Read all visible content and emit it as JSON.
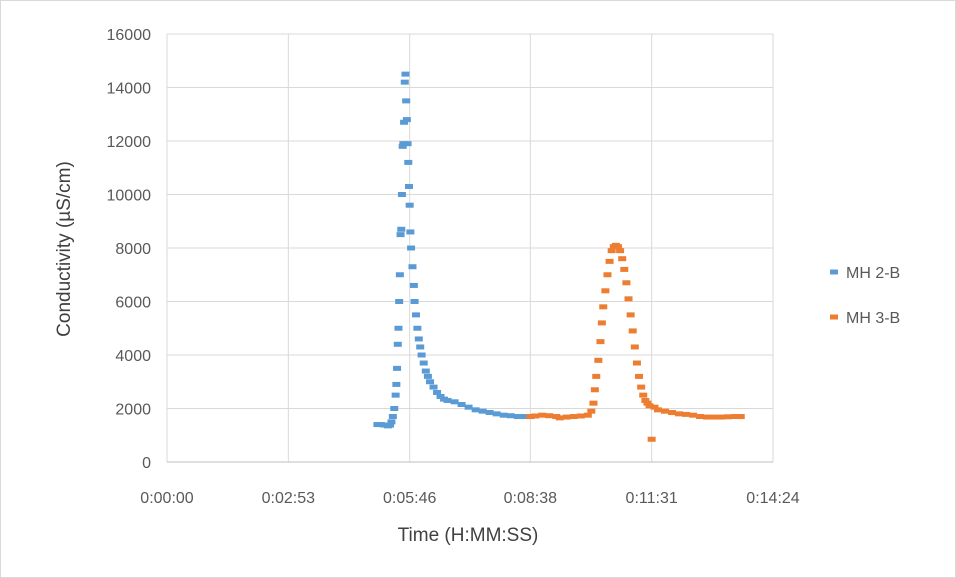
{
  "chart_data": {
    "type": "scatter",
    "title": "",
    "xlabel": "Time (H:MM:SS)",
    "ylabel": "Conductivity (µS/cm)",
    "x_unit": "H:MM:SS",
    "xlim": [
      "0:00:00",
      "0:14:24"
    ],
    "ylim": [
      0,
      16000
    ],
    "x_ticks": [
      "0:00:00",
      "0:02:53",
      "0:05:46",
      "0:08:38",
      "0:11:31",
      "0:14:24"
    ],
    "y_ticks": [
      "0",
      "2000",
      "4000",
      "6000",
      "8000",
      "10000",
      "12000",
      "14000",
      "16000"
    ],
    "grid": true,
    "legend_position": "right",
    "series": [
      {
        "name": "MH 2-B",
        "color": "#5B9BD5",
        "points": [
          [
            "0:05:00",
            1400
          ],
          [
            "0:05:05",
            1400
          ],
          [
            "0:05:10",
            1380
          ],
          [
            "0:05:15",
            1350
          ],
          [
            "0:05:18",
            1380
          ],
          [
            "0:05:20",
            1500
          ],
          [
            "0:05:22",
            1700
          ],
          [
            "0:05:24",
            2000
          ],
          [
            "0:05:26",
            2500
          ],
          [
            "0:05:27",
            2900
          ],
          [
            "0:05:28",
            3500
          ],
          [
            "0:05:29",
            4400
          ],
          [
            "0:05:30",
            5000
          ],
          [
            "0:05:31",
            6000
          ],
          [
            "0:05:32",
            7000
          ],
          [
            "0:05:33",
            8500
          ],
          [
            "0:05:34",
            8700
          ],
          [
            "0:05:35",
            10000
          ],
          [
            "0:05:36",
            11800
          ],
          [
            "0:05:37",
            11900
          ],
          [
            "0:05:38",
            12700
          ],
          [
            "0:05:39",
            14200
          ],
          [
            "0:05:40",
            14500
          ],
          [
            "0:05:41",
            13500
          ],
          [
            "0:05:42",
            12800
          ],
          [
            "0:05:43",
            11900
          ],
          [
            "0:05:44",
            11200
          ],
          [
            "0:05:45",
            10300
          ],
          [
            "0:05:46",
            9600
          ],
          [
            "0:05:47",
            8600
          ],
          [
            "0:05:48",
            8000
          ],
          [
            "0:05:50",
            7300
          ],
          [
            "0:05:52",
            6600
          ],
          [
            "0:05:53",
            6000
          ],
          [
            "0:05:55",
            5500
          ],
          [
            "0:05:57",
            5000
          ],
          [
            "0:05:59",
            4600
          ],
          [
            "0:06:01",
            4300
          ],
          [
            "0:06:03",
            4000
          ],
          [
            "0:06:06",
            3700
          ],
          [
            "0:06:09",
            3400
          ],
          [
            "0:06:12",
            3200
          ],
          [
            "0:06:15",
            3000
          ],
          [
            "0:06:20",
            2800
          ],
          [
            "0:06:25",
            2600
          ],
          [
            "0:06:30",
            2450
          ],
          [
            "0:06:35",
            2350
          ],
          [
            "0:06:40",
            2300
          ],
          [
            "0:06:50",
            2250
          ],
          [
            "0:07:00",
            2150
          ],
          [
            "0:07:10",
            2050
          ],
          [
            "0:07:20",
            1950
          ],
          [
            "0:07:30",
            1900
          ],
          [
            "0:07:40",
            1850
          ],
          [
            "0:07:50",
            1800
          ],
          [
            "0:08:00",
            1750
          ],
          [
            "0:08:10",
            1730
          ],
          [
            "0:08:20",
            1700
          ],
          [
            "0:08:30",
            1700
          ],
          [
            "0:08:38",
            1700
          ]
        ]
      },
      {
        "name": "MH 3-B",
        "color": "#ED7D31",
        "points": [
          [
            "0:08:38",
            1700
          ],
          [
            "0:08:45",
            1720
          ],
          [
            "0:08:55",
            1750
          ],
          [
            "0:09:05",
            1730
          ],
          [
            "0:09:15",
            1700
          ],
          [
            "0:09:20",
            1650
          ],
          [
            "0:09:30",
            1680
          ],
          [
            "0:09:40",
            1700
          ],
          [
            "0:09:50",
            1720
          ],
          [
            "0:10:00",
            1750
          ],
          [
            "0:10:05",
            1900
          ],
          [
            "0:10:08",
            2200
          ],
          [
            "0:10:10",
            2700
          ],
          [
            "0:10:12",
            3200
          ],
          [
            "0:10:15",
            3800
          ],
          [
            "0:10:18",
            4500
          ],
          [
            "0:10:20",
            5200
          ],
          [
            "0:10:22",
            5800
          ],
          [
            "0:10:25",
            6400
          ],
          [
            "0:10:28",
            7000
          ],
          [
            "0:10:31",
            7500
          ],
          [
            "0:10:34",
            7900
          ],
          [
            "0:10:37",
            8050
          ],
          [
            "0:10:40",
            8100
          ],
          [
            "0:10:43",
            8050
          ],
          [
            "0:10:46",
            7900
          ],
          [
            "0:10:49",
            7600
          ],
          [
            "0:10:52",
            7200
          ],
          [
            "0:10:55",
            6700
          ],
          [
            "0:10:58",
            6100
          ],
          [
            "0:11:01",
            5500
          ],
          [
            "0:11:04",
            4900
          ],
          [
            "0:11:07",
            4300
          ],
          [
            "0:11:10",
            3700
          ],
          [
            "0:11:13",
            3200
          ],
          [
            "0:11:16",
            2800
          ],
          [
            "0:11:19",
            2500
          ],
          [
            "0:11:22",
            2300
          ],
          [
            "0:11:25",
            2200
          ],
          [
            "0:11:28",
            2100
          ],
          [
            "0:11:31",
            850
          ],
          [
            "0:11:35",
            2050
          ],
          [
            "0:11:40",
            1950
          ],
          [
            "0:11:50",
            1900
          ],
          [
            "0:12:00",
            1850
          ],
          [
            "0:12:10",
            1800
          ],
          [
            "0:12:20",
            1780
          ],
          [
            "0:12:30",
            1750
          ],
          [
            "0:12:40",
            1700
          ],
          [
            "0:12:50",
            1680
          ],
          [
            "0:13:00",
            1680
          ],
          [
            "0:13:10",
            1680
          ],
          [
            "0:13:20",
            1690
          ],
          [
            "0:13:30",
            1700
          ],
          [
            "0:13:38",
            1700
          ]
        ]
      }
    ]
  }
}
